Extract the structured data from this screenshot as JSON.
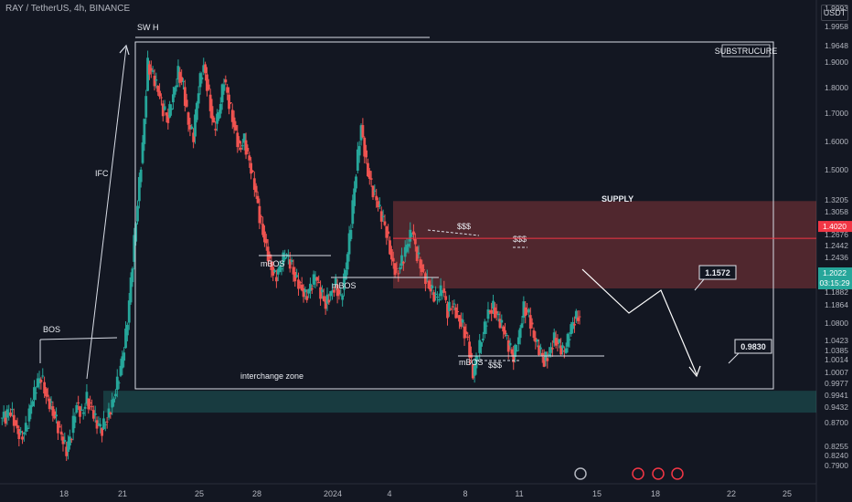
{
  "header": {
    "title": "RAY / TetherUS, 4h, BINANCE",
    "currency": "USDT"
  },
  "colors": {
    "background": "#131722",
    "up": "#26a69a",
    "down": "#ef5350",
    "supply_zone": "rgba(239,83,80,0.28)",
    "demand_zone": "rgba(38,166,154,0.25)",
    "annotation": "#e0e3eb",
    "current_price": "#26a69a",
    "supply_price_label": "#f23645"
  },
  "chart_data": {
    "type": "candlestick",
    "title": "RAY / TetherUS, 4h, BINANCE",
    "xlabel": "",
    "ylabel": "",
    "x_ticks": [
      "18",
      "21",
      "25",
      "28",
      "2024",
      "4",
      "8",
      "11",
      "15",
      "18",
      "22",
      "25"
    ],
    "y_ticks": [
      "1.9993",
      "1.9958",
      "1.9648",
      "1.9000",
      "1.8000",
      "1.7000",
      "1.6000",
      "1.5000",
      "1.3205",
      "1.3058",
      "1.2676",
      "1.2676",
      "1.2442",
      "1.2436",
      "1.1882",
      "1.1864",
      "1.0800",
      "1.0423",
      "1.0385",
      "1.0014",
      "1.0007",
      "0.9977",
      "0.9941",
      "0.9432",
      "0.8700",
      "0.8255",
      "0.8240",
      "0.7900"
    ],
    "ylim": [
      0.78,
      2.01
    ],
    "price_labels": [
      {
        "value": "1.4020",
        "kind": "supply_line"
      },
      {
        "value": "1.2022",
        "kind": "current_price"
      },
      {
        "value": "03:15:29",
        "kind": "countdown"
      }
    ],
    "ohlc_close_path": [
      0.93,
      0.95,
      0.91,
      0.88,
      0.9,
      0.96,
      1.01,
      1.04,
      0.99,
      0.96,
      0.92,
      0.88,
      0.84,
      0.89,
      0.97,
      0.94,
      0.98,
      0.95,
      0.91,
      0.9,
      0.93,
      0.97,
      1.02,
      1.08,
      1.18,
      1.34,
      1.5,
      1.65,
      1.86,
      1.83,
      1.79,
      1.74,
      1.72,
      1.78,
      1.84,
      1.8,
      1.7,
      1.67,
      1.8,
      1.86,
      1.78,
      1.69,
      1.73,
      1.82,
      1.76,
      1.7,
      1.64,
      1.66,
      1.6,
      1.54,
      1.46,
      1.4,
      1.34,
      1.3,
      1.32,
      1.36,
      1.34,
      1.3,
      1.28,
      1.25,
      1.27,
      1.3,
      1.26,
      1.23,
      1.26,
      1.28,
      1.24,
      1.32,
      1.44,
      1.58,
      1.7,
      1.6,
      1.54,
      1.5,
      1.46,
      1.42,
      1.35,
      1.31,
      1.34,
      1.38,
      1.42,
      1.36,
      1.32,
      1.29,
      1.26,
      1.24,
      1.27,
      1.21,
      1.23,
      1.2,
      1.17,
      1.13,
      1.04,
      1.1,
      1.15,
      1.21,
      1.22,
      1.19,
      1.16,
      1.12,
      1.09,
      1.14,
      1.22,
      1.2,
      1.14,
      1.11,
      1.08,
      1.1,
      1.14,
      1.12,
      1.1,
      1.15,
      1.19,
      1.2
    ],
    "annotations": [
      "SW H",
      "IFC",
      "BOS",
      "mBOS",
      "mBOS",
      "mBOS",
      "$$$",
      "$$$",
      "$$$",
      "SUPPLY",
      "SUBSTRUCURE",
      "interchange zone",
      "1.1572",
      "0.9830"
    ],
    "zones": [
      {
        "name": "SUPPLY",
        "top": 1.5,
        "bottom": 1.27
      },
      {
        "name": "interchange zone",
        "top": 1.0007,
        "bottom": 0.9432
      }
    ],
    "projection_path": [
      1.3205,
      1.17,
      1.2,
      0.998
    ],
    "grid": false,
    "legend": "none"
  }
}
